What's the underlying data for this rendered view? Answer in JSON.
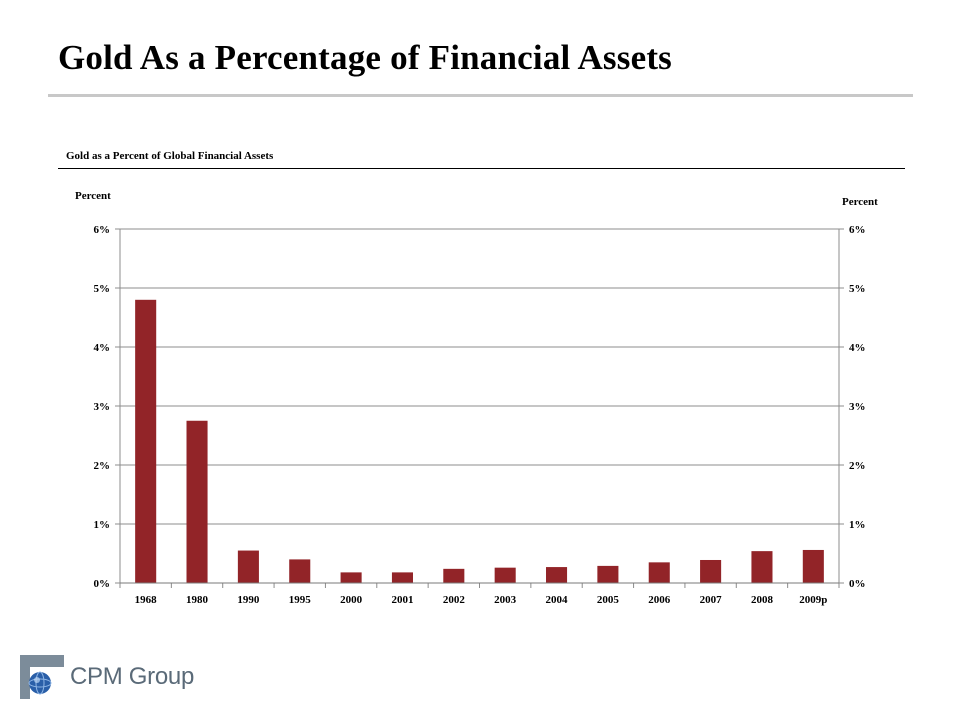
{
  "slide": {
    "title": "Gold As a Percentage of Financial Assets"
  },
  "logo": {
    "text": "CPM Group",
    "icon": "globe-logo-icon"
  },
  "chart_data": {
    "type": "bar",
    "title": "Gold as a Percent of Global Financial Assets",
    "ylabel_left": "Percent",
    "ylabel_right": "Percent",
    "categories": [
      "1968",
      "1980",
      "1990",
      "1995",
      "2000",
      "2001",
      "2002",
      "2003",
      "2004",
      "2005",
      "2006",
      "2007",
      "2008",
      "2009p"
    ],
    "values": [
      4.8,
      2.75,
      0.55,
      0.4,
      0.18,
      0.18,
      0.24,
      0.26,
      0.27,
      0.29,
      0.35,
      0.39,
      0.54,
      0.56
    ],
    "ylim": [
      0,
      6
    ],
    "yticks": [
      "0%",
      "1%",
      "2%",
      "3%",
      "4%",
      "5%",
      "6%"
    ],
    "grid": true,
    "bar_color": "#922428",
    "legend": "none"
  }
}
